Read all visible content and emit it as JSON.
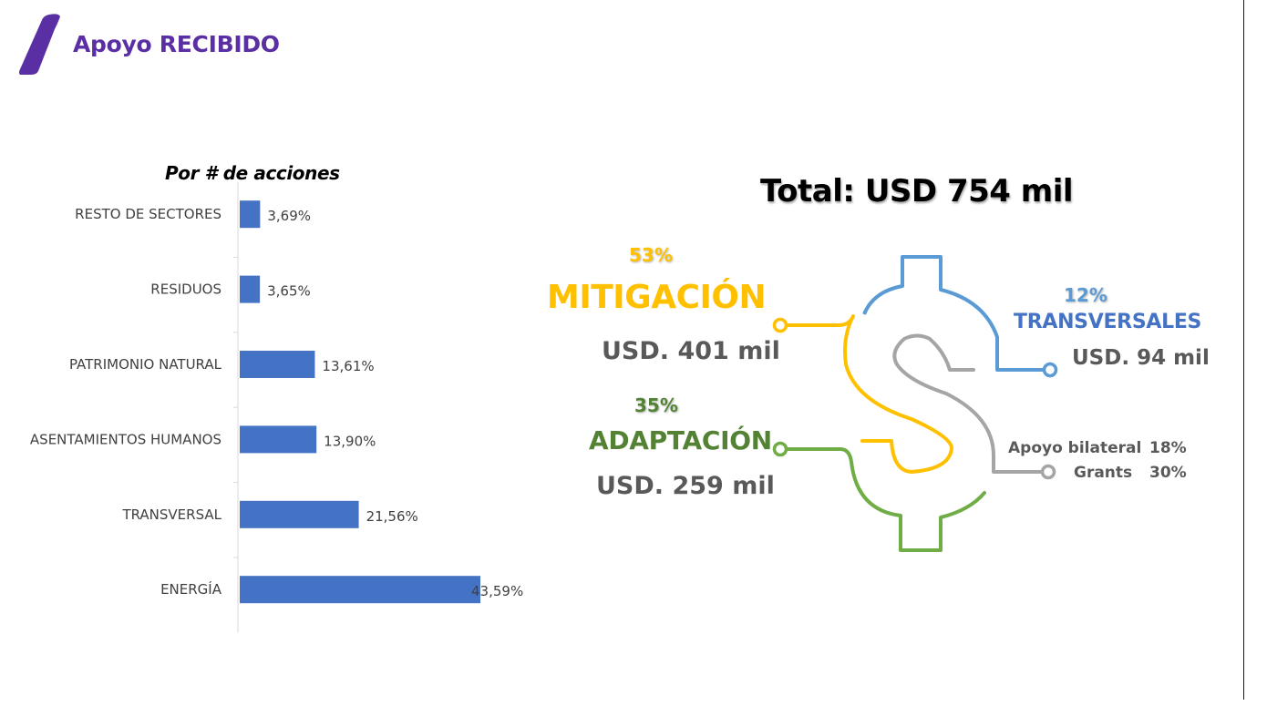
{
  "header": {
    "title": "Apoyo RECIBIDO"
  },
  "colors": {
    "title": "#5a2fa4",
    "bar": "#4472c4",
    "mitigacion": "#ffc000",
    "adaptacion": "#70ad47",
    "transversales": "#5b9bd5",
    "grants": "#a5a5a5",
    "text_gray": "#595959"
  },
  "chart_data": {
    "type": "bar",
    "orientation": "horizontal",
    "title": "Por # de acciones",
    "categories": [
      "RESTO DE SECTORES",
      "RESIDUOS",
      "PATRIMONIO NATURAL",
      "ASENTAMIENTOS HUMANOS",
      "TRANSVERSAL",
      "ENERGÍA"
    ],
    "values": [
      3.69,
      3.65,
      13.61,
      13.9,
      21.56,
      43.59
    ],
    "value_labels": [
      "3,69%",
      "3,65%",
      "13,61%",
      "13,90%",
      "21,56%",
      "43,59%"
    ],
    "xlim": [
      0,
      50
    ],
    "grid": false,
    "legend": "none"
  },
  "summary": {
    "total": "Total: USD 754 mil",
    "mitigacion": {
      "pct": "53%",
      "label": "MITIGACIÓN",
      "amount": "USD. 401 mil"
    },
    "adaptacion": {
      "pct": "35%",
      "label": "ADAPTACIÓN",
      "amount": "USD. 259 mil"
    },
    "transversales": {
      "pct": "12%",
      "label": "TRANSVERSALES",
      "amount": "USD. 94 mil"
    },
    "breakdown": [
      {
        "label": "Apoyo bilateral",
        "pct": "18%"
      },
      {
        "label": "Grants",
        "pct": "30%"
      }
    ]
  }
}
